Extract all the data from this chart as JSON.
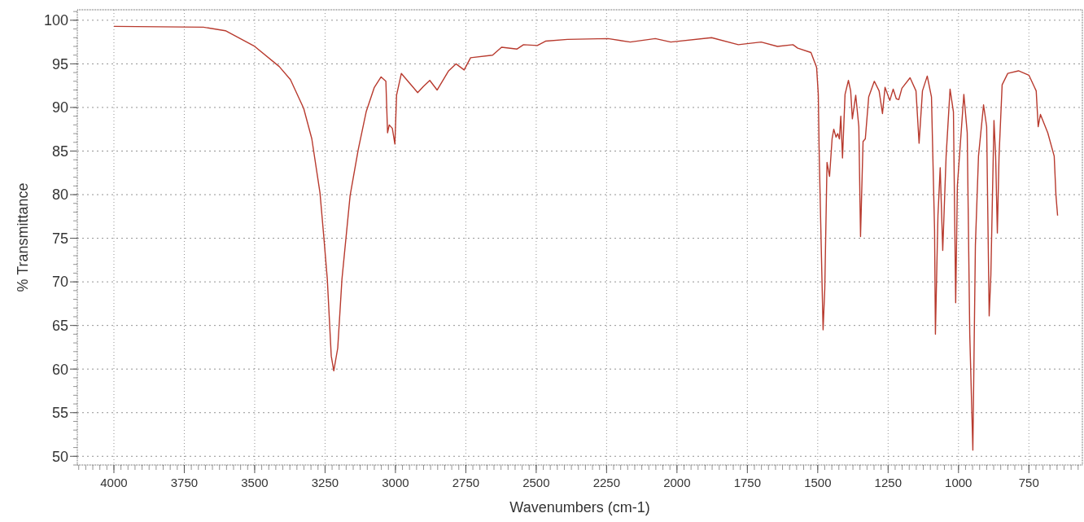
{
  "chart_data": {
    "type": "line",
    "xlabel": "Wavenumbers (cm-1)",
    "ylabel": "% Transmittance",
    "xlim": [
      4130,
      560
    ],
    "ylim": [
      49,
      101.2
    ],
    "xticks": [
      4000,
      3750,
      3500,
      3250,
      3000,
      2750,
      2500,
      2250,
      2000,
      1750,
      1500,
      1250,
      1000,
      750
    ],
    "yticks": [
      50,
      55,
      60,
      65,
      70,
      75,
      80,
      85,
      90,
      95,
      100
    ],
    "grid": true,
    "series": [
      {
        "color": "#b83a2e",
        "x": [
          4000,
          3682,
          3604,
          3500,
          3413,
          3373,
          3326,
          3297,
          3268,
          3254,
          3242,
          3228,
          3219,
          3205,
          3190,
          3161,
          3132,
          3104,
          3075,
          3051,
          3034,
          3028,
          3022,
          3011,
          3002,
          2996,
          2979,
          2950,
          2921,
          2901,
          2878,
          2852,
          2811,
          2785,
          2756,
          2733,
          2655,
          2623,
          2568,
          2545,
          2496,
          2467,
          2389,
          2245,
          2166,
          2077,
          2022,
          1877,
          1782,
          1701,
          1643,
          1588,
          1571,
          1524,
          1504,
          1498,
          1495,
          1490,
          1481,
          1475,
          1467,
          1458,
          1449,
          1443,
          1435,
          1429,
          1423,
          1418,
          1412,
          1403,
          1391,
          1383,
          1377,
          1365,
          1354,
          1348,
          1339,
          1331,
          1319,
          1299,
          1282,
          1270,
          1261,
          1244,
          1232,
          1221,
          1212,
          1201,
          1172,
          1151,
          1140,
          1128,
          1111,
          1096,
          1085,
          1082,
          1073,
          1065,
          1056,
          1044,
          1030,
          1018,
          1010,
          1004,
          981,
          969,
          960,
          949,
          940,
          929,
          911,
          900,
          891,
          885,
          874,
          868,
          862,
          856,
          845,
          825,
          787,
          750,
          724,
          717,
          709,
          683,
          660,
          654,
          648
        ],
        "values": [
          99.3,
          99.2,
          98.8,
          97.0,
          94.7,
          93.2,
          89.9,
          86.4,
          80.2,
          75.0,
          70.3,
          61.5,
          59.8,
          62.4,
          70.3,
          79.9,
          85.2,
          89.5,
          92.3,
          93.5,
          93.0,
          87.1,
          88.0,
          87.6,
          85.8,
          91.4,
          93.9,
          92.8,
          91.7,
          92.4,
          93.1,
          92.0,
          94.2,
          95.0,
          94.3,
          95.7,
          96.0,
          96.9,
          96.7,
          97.2,
          97.1,
          97.6,
          97.8,
          97.9,
          97.5,
          97.9,
          97.5,
          98.0,
          97.2,
          97.5,
          97.0,
          97.2,
          96.8,
          96.3,
          94.6,
          91.5,
          85.1,
          77.6,
          64.5,
          69.2,
          83.7,
          82.1,
          86.4,
          87.5,
          86.6,
          87.0,
          86.4,
          89.0,
          84.2,
          91.5,
          93.1,
          91.9,
          88.7,
          91.4,
          87.8,
          75.2,
          86.1,
          86.4,
          91.2,
          93.0,
          91.9,
          89.3,
          92.3,
          90.8,
          92.1,
          91.0,
          90.9,
          92.2,
          93.4,
          91.9,
          85.9,
          91.9,
          93.6,
          91.2,
          75.9,
          64.0,
          77.6,
          83.1,
          73.6,
          84.4,
          92.1,
          89.5,
          67.6,
          81.0,
          91.5,
          87.1,
          64.0,
          50.7,
          74.2,
          84.4,
          90.3,
          87.8,
          66.1,
          70.8,
          88.5,
          84.4,
          75.6,
          84.4,
          92.6,
          93.9,
          94.2,
          93.7,
          91.9,
          87.8,
          89.2,
          87.1,
          84.4,
          80.0,
          77.6
        ]
      }
    ]
  }
}
